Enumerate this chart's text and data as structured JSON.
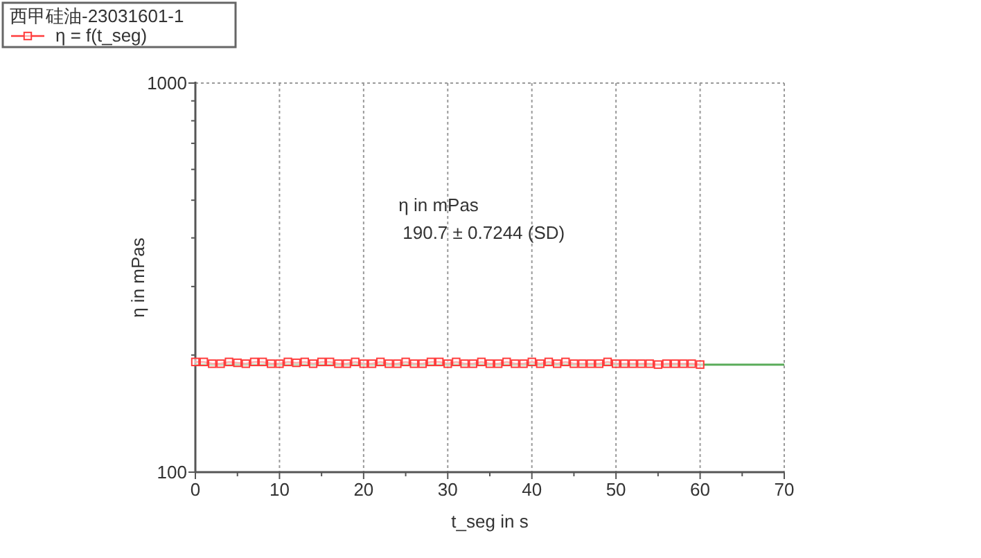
{
  "chart_data": {
    "type": "line",
    "xlabel": "t_seg in s",
    "ylabel": "η in mPas",
    "legend_title": "西甲硅油-23031601-1",
    "annotations": [
      "η in mPas",
      "190.7 ± 0.7244 (SD)"
    ],
    "x": [
      0,
      1,
      2,
      3,
      4,
      5,
      6,
      7,
      8,
      9,
      10,
      11,
      12,
      13,
      14,
      15,
      16,
      17,
      18,
      19,
      20,
      21,
      22,
      23,
      24,
      25,
      26,
      27,
      28,
      29,
      30,
      31,
      32,
      33,
      34,
      35,
      36,
      37,
      38,
      39,
      40,
      41,
      42,
      43,
      44,
      45,
      46,
      47,
      48,
      49,
      50,
      51,
      52,
      53,
      54,
      55,
      56,
      57,
      58,
      59,
      60
    ],
    "series": [
      {
        "name": "η = f(t_seg)",
        "color": "#ff3b3b",
        "values": [
          192,
          192,
          190,
          190,
          192,
          191,
          190,
          192,
          192,
          190,
          190,
          192,
          191,
          192,
          190,
          192,
          192,
          190,
          190,
          192,
          190,
          190,
          192,
          190,
          190,
          192,
          190,
          190,
          192,
          192,
          190,
          192,
          190,
          190,
          192,
          190,
          190,
          192,
          190,
          190,
          192,
          190,
          192,
          190,
          192,
          190,
          190,
          190,
          190,
          192,
          190,
          190,
          190,
          190,
          190,
          189,
          190,
          190,
          190,
          190,
          189
        ]
      }
    ],
    "xlim": [
      0,
      70
    ],
    "xticks": [
      0,
      {
        "value": 5,
        "label": null
      },
      10,
      {
        "value": 15,
        "label": null
      },
      20,
      {
        "value": 25,
        "label": null
      },
      30,
      {
        "value": 35,
        "label": null
      },
      40,
      {
        "value": 45,
        "label": null
      },
      50,
      {
        "value": 55,
        "label": null
      },
      60,
      {
        "value": 65,
        "label": null
      },
      70
    ],
    "ylim": [
      100,
      1000
    ],
    "yticks": [
      100,
      {
        "value": 200,
        "label": null
      },
      {
        "value": 300,
        "label": null
      },
      {
        "value": 400,
        "label": null
      },
      {
        "value": 500,
        "label": null
      },
      {
        "value": 600,
        "label": null
      },
      {
        "value": 700,
        "label": null
      },
      {
        "value": 800,
        "label": null
      },
      {
        "value": 900,
        "label": null
      },
      1000
    ],
    "log": "y",
    "grid": true,
    "legend": "top left",
    "marker": "square",
    "line_style": "solid",
    "ref_lines": [
      {
        "axis": "y",
        "value": 189,
        "color": "#5aac5a"
      }
    ]
  }
}
